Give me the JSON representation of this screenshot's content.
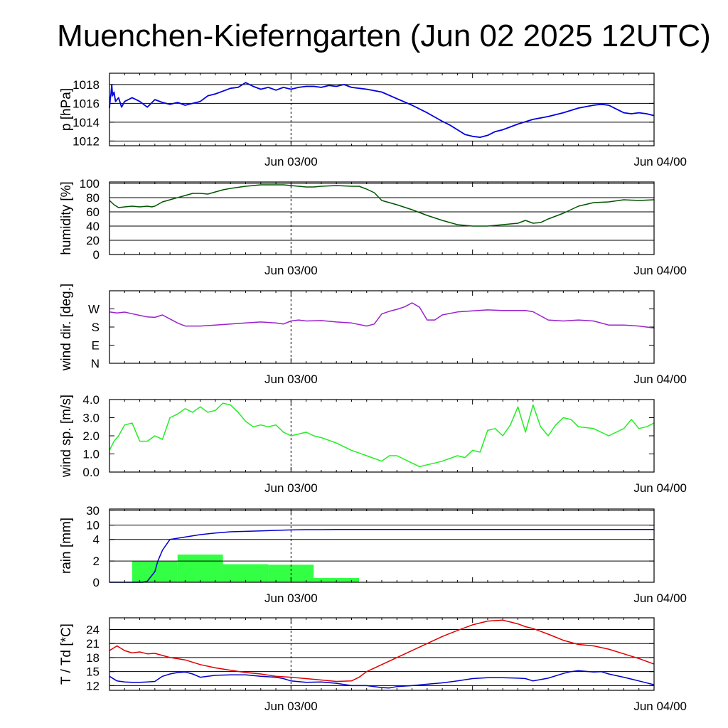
{
  "title": "Muenchen-Kieferngarten (Jun 02 2025 12UTC)",
  "colors": {
    "pressure": "#0000dd",
    "humidity": "#005500",
    "wind_dir": "#9922cc",
    "wind_speed": "#22ee22",
    "rain_bar": "#33ff44",
    "rain_line": "#0000cc",
    "temperature": "#dd0000",
    "dewpoint": "#0000cc"
  },
  "chart_data": [
    {
      "type": "line",
      "ylabel": "p [hPa]",
      "yticks": [
        1012,
        1014,
        1016,
        1018
      ],
      "ylim": [
        1011.5,
        1019.2
      ],
      "xlim": [
        0,
        36
      ],
      "xticks": [
        {
          "x": 12,
          "label": "Jun 03/00"
        },
        {
          "x": 36,
          "label": "Jun 04/00"
        }
      ],
      "grid": true,
      "series": [
        {
          "x": [
            0,
            0.05,
            0.1,
            0.15,
            0.2,
            0.3,
            0.4,
            0.6,
            0.8,
            1,
            1.5,
            2,
            2.5,
            3,
            3.5,
            4,
            4.5,
            5,
            5.5,
            6,
            6.5,
            7,
            7.5,
            8,
            8.5,
            9,
            9.5,
            10,
            10.5,
            11,
            11.5,
            12,
            12.5,
            13,
            13.5,
            14,
            14.5,
            15,
            15.5,
            16,
            17,
            18,
            19,
            20,
            21,
            22,
            22.5,
            23,
            23.5,
            24,
            24.5,
            25,
            25.5,
            26,
            27,
            28,
            29,
            30,
            31,
            32,
            32.5,
            33,
            33.5,
            34,
            34.5,
            35,
            35.5,
            36
          ],
          "values": [
            1015.5,
            1016.5,
            1017.0,
            1018.0,
            1016.8,
            1017.2,
            1016.2,
            1016.6,
            1015.6,
            1016.2,
            1016.6,
            1016.2,
            1015.6,
            1016.4,
            1016.1,
            1015.9,
            1016.1,
            1015.8,
            1016.0,
            1016.2,
            1016.8,
            1017.0,
            1017.3,
            1017.6,
            1017.7,
            1018.2,
            1017.8,
            1017.5,
            1017.7,
            1017.4,
            1017.7,
            1017.5,
            1017.7,
            1017.8,
            1017.8,
            1017.7,
            1017.9,
            1017.8,
            1018.0,
            1017.7,
            1017.5,
            1017.2,
            1016.5,
            1015.8,
            1015.0,
            1014.1,
            1013.7,
            1013.2,
            1012.7,
            1012.5,
            1012.4,
            1012.6,
            1013.0,
            1013.2,
            1013.8,
            1014.3,
            1014.6,
            1015.0,
            1015.5,
            1015.8,
            1015.9,
            1015.8,
            1015.4,
            1015.0,
            1014.9,
            1015.0,
            1014.9,
            1014.7
          ]
        }
      ]
    },
    {
      "type": "line",
      "ylabel": "humidity [%]",
      "yticks": [
        0,
        20,
        40,
        60,
        80,
        100
      ],
      "ylim": [
        0,
        102
      ],
      "xlim": [
        0,
        36
      ],
      "xticks": [
        {
          "x": 12,
          "label": "Jun 03/00"
        },
        {
          "x": 36,
          "label": "Jun 04/00"
        }
      ],
      "grid": true,
      "series": [
        {
          "x": [
            0,
            0.3,
            0.6,
            1,
            1.5,
            2,
            2.5,
            2.8,
            3,
            3.5,
            4,
            5,
            5.5,
            6,
            6.5,
            7,
            7.5,
            8,
            9,
            10,
            11,
            11.5,
            12,
            12.5,
            13,
            13.5,
            14,
            15,
            16,
            16.5,
            17,
            17.5,
            18,
            19,
            20,
            21,
            22,
            23,
            24,
            25,
            26,
            27,
            27.5,
            28,
            28.5,
            29,
            30,
            31,
            32,
            33,
            34,
            35,
            36
          ],
          "values": [
            76,
            70,
            66,
            67,
            68,
            67,
            68,
            67,
            68,
            74,
            77,
            83,
            86,
            86,
            85,
            88,
            91,
            93,
            96,
            98,
            98,
            98,
            97,
            96,
            95,
            95,
            96,
            97,
            96,
            96,
            92,
            87,
            76,
            70,
            63,
            55,
            48,
            42,
            40,
            40,
            42,
            44,
            48,
            44,
            45,
            50,
            58,
            68,
            73,
            74,
            77,
            76,
            77
          ]
        }
      ]
    },
    {
      "type": "line",
      "ylabel": "wind dir. [deg.]",
      "yticks": [
        {
          "v": 0,
          "label": "N"
        },
        {
          "v": 90,
          "label": "E"
        },
        {
          "v": 180,
          "label": "S"
        },
        {
          "v": 270,
          "label": "W"
        }
      ],
      "ylim": [
        0,
        360
      ],
      "xlim": [
        0,
        36
      ],
      "xticks": [
        {
          "x": 12,
          "label": "Jun 03/00"
        },
        {
          "x": 36,
          "label": "Jun 04/00"
        }
      ],
      "grid": false,
      "series": [
        {
          "x": [
            0,
            0.5,
            1,
            1.5,
            2,
            2.5,
            3,
            3.5,
            4,
            4.5,
            5,
            6,
            7,
            8,
            9,
            10,
            11,
            11.5,
            12,
            12.5,
            13,
            14,
            15,
            16,
            17,
            17.5,
            18,
            18.5,
            19,
            19.5,
            20,
            20.5,
            21,
            21.5,
            22,
            23,
            24,
            25,
            26,
            27,
            27.5,
            28,
            29,
            30,
            31,
            32,
            33,
            34,
            35,
            36
          ],
          "values": [
            255,
            250,
            254,
            246,
            238,
            230,
            228,
            240,
            220,
            200,
            185,
            185,
            190,
            195,
            200,
            205,
            200,
            195,
            210,
            215,
            210,
            212,
            205,
            200,
            185,
            195,
            245,
            258,
            268,
            280,
            300,
            278,
            215,
            215,
            240,
            255,
            260,
            265,
            262,
            262,
            262,
            256,
            215,
            210,
            215,
            210,
            190,
            190,
            185,
            175
          ]
        }
      ]
    },
    {
      "type": "line",
      "ylabel": "wind sp. [m/s]",
      "yticks": [
        {
          "v": 0,
          "label": "0.0"
        },
        {
          "v": 1,
          "label": "1.0"
        },
        {
          "v": 2,
          "label": "2.0"
        },
        {
          "v": 3,
          "label": "3.0"
        },
        {
          "v": 4,
          "label": "4.0"
        }
      ],
      "ylim": [
        0,
        4.0
      ],
      "xlim": [
        0,
        36
      ],
      "xticks": [
        {
          "x": 12,
          "label": "Jun 03/00"
        },
        {
          "x": 36,
          "label": "Jun 04/00"
        }
      ],
      "grid": false,
      "series": [
        {
          "x": [
            0,
            0.3,
            0.6,
            1,
            1.5,
            2,
            2.5,
            3,
            3.5,
            4,
            4.5,
            5,
            5.5,
            6,
            6.5,
            7,
            7.5,
            8,
            8.5,
            9,
            9.5,
            10,
            10.5,
            11,
            11.5,
            12,
            12.5,
            13,
            13.5,
            14,
            15,
            16,
            17,
            18,
            18.5,
            19,
            20,
            20.5,
            21,
            21.5,
            22,
            23,
            23.5,
            24,
            24.5,
            25,
            25.5,
            26,
            26.5,
            27,
            27.5,
            28,
            28.5,
            29,
            29.5,
            30,
            30.5,
            31,
            32,
            33,
            34,
            34.5,
            35,
            35.5,
            36
          ],
          "values": [
            1.2,
            1.7,
            2.0,
            2.6,
            2.7,
            1.7,
            1.7,
            2.0,
            1.8,
            3.0,
            3.2,
            3.5,
            3.3,
            3.6,
            3.3,
            3.4,
            3.8,
            3.7,
            3.3,
            2.8,
            2.5,
            2.6,
            2.5,
            2.6,
            2.2,
            2.0,
            2.1,
            2.2,
            2.0,
            1.9,
            1.6,
            1.2,
            0.9,
            0.6,
            0.9,
            0.9,
            0.5,
            0.3,
            0.4,
            0.5,
            0.6,
            0.9,
            0.8,
            1.2,
            1.1,
            2.3,
            2.4,
            2.0,
            2.6,
            3.6,
            2.2,
            3.7,
            2.5,
            2.0,
            2.6,
            3.0,
            2.9,
            2.5,
            2.4,
            2.0,
            2.4,
            2.9,
            2.4,
            2.5,
            2.7
          ]
        }
      ]
    },
    {
      "type": "bar",
      "ylabel": "rain [mm]",
      "yticks": [
        {
          "v": 0,
          "label": "0"
        },
        {
          "v": 2,
          "label": "2"
        },
        {
          "v": 4,
          "label": "4"
        },
        {
          "v": 10,
          "label": "10"
        },
        {
          "v": 30,
          "label": "30"
        }
      ],
      "ylim": [
        0,
        30
      ],
      "xlim": [
        0,
        36
      ],
      "xticks": [
        {
          "x": 12,
          "label": "Jun 03/00"
        },
        {
          "x": 36,
          "label": "Jun 04/00"
        }
      ],
      "grid": true,
      "bars": [
        {
          "x0": 1.5,
          "x1": 4.5,
          "value": 2.0
        },
        {
          "x0": 4.5,
          "x1": 7.5,
          "value": 2.6
        },
        {
          "x0": 7.5,
          "x1": 10.5,
          "value": 1.7
        },
        {
          "x0": 10.5,
          "x1": 13.5,
          "value": 1.65
        },
        {
          "x0": 13.5,
          "x1": 16.5,
          "value": 0.4
        }
      ],
      "series": [
        {
          "x": [
            0,
            2.2,
            2.5,
            3,
            3.2,
            3.5,
            4,
            5,
            6,
            7,
            8,
            9,
            10,
            11,
            12,
            13,
            14,
            15,
            20,
            36
          ],
          "values": [
            0,
            0,
            0.1,
            1.0,
            2.0,
            3.0,
            4.0,
            5.0,
            6.0,
            6.7,
            7.2,
            7.4,
            7.6,
            7.8,
            8.0,
            8.1,
            8.1,
            8.2,
            8.2,
            8.2
          ]
        }
      ]
    },
    {
      "type": "line",
      "ylabel": "T / Td [*C]",
      "yticks": [
        12,
        15,
        18,
        21,
        24
      ],
      "ylim": [
        11.0,
        26.5
      ],
      "xlim": [
        0,
        36
      ],
      "xticks": [
        {
          "x": 12,
          "label": "Jun 03/00"
        },
        {
          "x": 36,
          "label": "Jun 04/00"
        }
      ],
      "grid": true,
      "series": [
        {
          "x": [
            0,
            0.5,
            1,
            1.5,
            2,
            2.5,
            3,
            4,
            5,
            6,
            7,
            8,
            9,
            10,
            11,
            12,
            13,
            14,
            15,
            16,
            16.5,
            17,
            18,
            19,
            20,
            21,
            22,
            23,
            24,
            25,
            26,
            26.5,
            27,
            27.5,
            28,
            29,
            30,
            31,
            32,
            33,
            34,
            35,
            36
          ],
          "values": [
            19.5,
            20.5,
            19.5,
            19.0,
            19.2,
            18.8,
            18.9,
            18.0,
            17.5,
            16.5,
            15.8,
            15.3,
            14.8,
            14.5,
            14.0,
            13.8,
            13.5,
            13.2,
            12.9,
            13.0,
            13.8,
            15.0,
            16.5,
            18.0,
            19.5,
            21.0,
            22.5,
            23.8,
            25.0,
            25.8,
            26.0,
            25.6,
            25.2,
            24.6,
            24.2,
            23.0,
            21.7,
            20.8,
            20.5,
            19.8,
            18.8,
            17.8,
            16.6
          ]
        },
        {
          "x": [
            0,
            0.5,
            1,
            1.5,
            2,
            2.5,
            3,
            3.5,
            4,
            4.5,
            5,
            5.5,
            6,
            6.5,
            7,
            8,
            9,
            10,
            11,
            11.5,
            12,
            13,
            14,
            15,
            16,
            17,
            18,
            18.5,
            19,
            20,
            21,
            22,
            23,
            24,
            25,
            26,
            27,
            27.5,
            28,
            29,
            30,
            30.5,
            31,
            32,
            32.5,
            33,
            34,
            35,
            36
          ],
          "values": [
            14.0,
            13.0,
            12.8,
            12.7,
            12.7,
            12.8,
            12.9,
            14.0,
            14.5,
            14.8,
            14.9,
            14.5,
            13.8,
            14.0,
            14.2,
            14.3,
            14.3,
            14.0,
            13.8,
            13.5,
            13.0,
            12.7,
            12.8,
            12.5,
            12.0,
            12.0,
            11.6,
            11.5,
            11.8,
            12.0,
            12.3,
            12.6,
            13.0,
            13.5,
            13.7,
            13.7,
            13.6,
            13.5,
            13.0,
            13.6,
            14.6,
            15.0,
            15.2,
            14.9,
            15.0,
            14.5,
            13.8,
            13.0,
            12.2
          ]
        }
      ]
    }
  ]
}
